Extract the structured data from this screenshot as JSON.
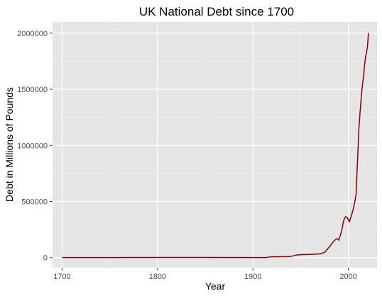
{
  "chart_data": {
    "type": "line",
    "title": "UK National Debt since 1700",
    "xlabel": "Year",
    "ylabel": "Debt in Millions of Pounds",
    "xlim": [
      1690,
      2030
    ],
    "ylim": [
      -90000,
      2100000
    ],
    "x_ticks": [
      1700,
      1800,
      1900,
      2000
    ],
    "y_ticks": [
      0,
      500000,
      1000000,
      1500000,
      2000000
    ],
    "x_tick_labels": [
      "1700",
      "1800",
      "1900",
      "2000"
    ],
    "y_tick_labels": [
      "0",
      "500000",
      "1000000",
      "1500000",
      "2000000"
    ],
    "grid": true,
    "line_color": "#8b0000",
    "panel_background": "#e5e5e5",
    "series": [
      {
        "x": [
          1700,
          1750,
          1800,
          1850,
          1900,
          1914,
          1919,
          1930,
          1939,
          1946,
          1950,
          1960,
          1970,
          1975,
          1980,
          1985,
          1988,
          1990,
          1993,
          1995,
          1997,
          1999,
          2001,
          2003,
          2005,
          2007,
          2008,
          2009,
          2010,
          2011,
          2012,
          2013,
          2014,
          2015,
          2016,
          2017,
          2018,
          2019,
          2020,
          2021
        ],
        "y": [
          1000,
          1000,
          1500,
          1500,
          700,
          700,
          7400,
          7600,
          8300,
          24000,
          26000,
          28000,
          33000,
          45000,
          95000,
          150000,
          170000,
          155000,
          240000,
          330000,
          365000,
          355000,
          320000,
          370000,
          430000,
          510000,
          560000,
          760000,
          950000,
          1150000,
          1270000,
          1380000,
          1480000,
          1560000,
          1620000,
          1720000,
          1790000,
          1830000,
          1880000,
          2000000
        ]
      }
    ]
  }
}
